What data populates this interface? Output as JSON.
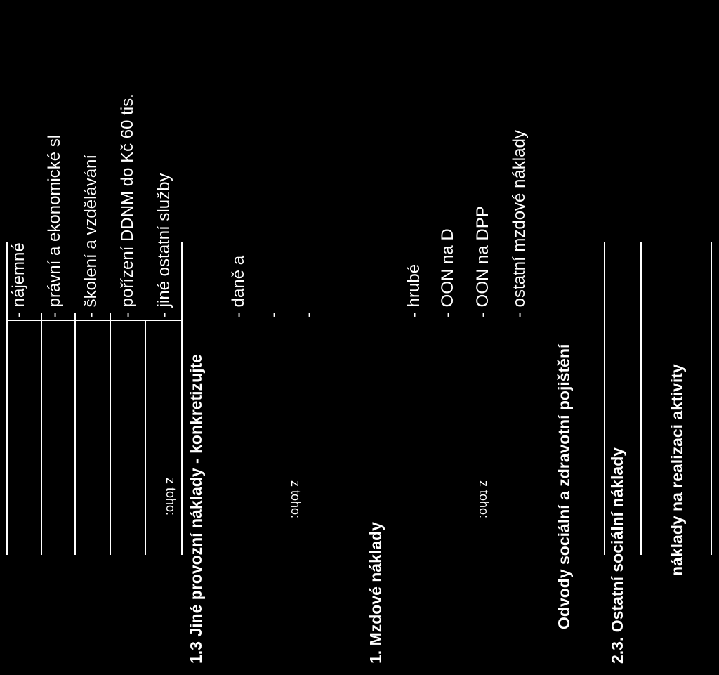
{
  "rows": {
    "najemne": "- nájemné",
    "pravni": "- právní a ekonomické sl",
    "skoleni": "- školení a vzdělávání",
    "porizeni": "- pořízení DDNM do Kč 60 tis.",
    "jine_sluzby": "- jiné ostatní služby",
    "z_toho_1": "z toho:",
    "jine_provozni": "1.3 Jiné provozní náklady - konkretizujte",
    "z_toho_2": "z toho:",
    "dane": "- daně a",
    "dash_1": "-",
    "dash_2": "-",
    "mzdove": "1. Mzdové náklady",
    "z_toho_3": "z toho:",
    "hrube": "- hrubé",
    "oon_d": "- OON na D",
    "oon_dpp": "- OON na DPP",
    "ostatni_mzdove": "- ostatní mzdové náklady",
    "odvody": "Odvody sociální a zdravotní pojištění",
    "ostatni_socialni": "2.3. Ostatní sociální náklady",
    "naklady_realizace": "náklady na realizaci aktivity"
  }
}
